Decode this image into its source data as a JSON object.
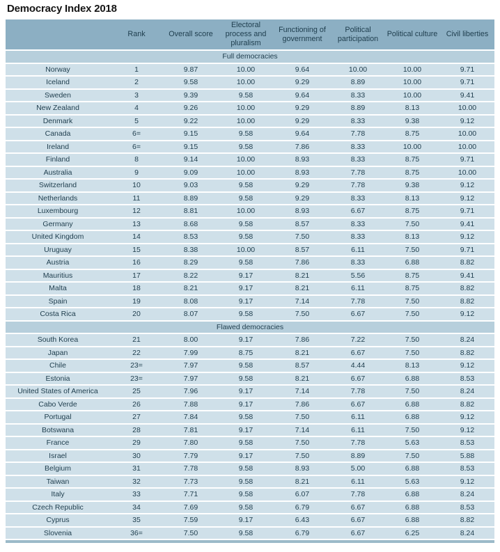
{
  "title": "Democracy Index 2018",
  "colors": {
    "header_bg": "#8cafc3",
    "section_bg": "#b7cfdc",
    "row_bg": "#cfe0e9",
    "text": "#1e3d4d",
    "title_text": "#151515",
    "bottom_edge": "#9cbac9",
    "page_bg": "#ffffff"
  },
  "table": {
    "columns": [
      "",
      "Rank",
      "Overall score",
      "Electoral process and pluralism",
      "Functioning of government",
      "Political participation",
      "Political culture",
      "Civil liberties"
    ],
    "sections": [
      {
        "label": "Full democracies",
        "rows": [
          [
            "Norway",
            "1",
            "9.87",
            "10.00",
            "9.64",
            "10.00",
            "10.00",
            "9.71"
          ],
          [
            "Iceland",
            "2",
            "9.58",
            "10.00",
            "9.29",
            "8.89",
            "10.00",
            "9.71"
          ],
          [
            "Sweden",
            "3",
            "9.39",
            "9.58",
            "9.64",
            "8.33",
            "10.00",
            "9.41"
          ],
          [
            "New Zealand",
            "4",
            "9.26",
            "10.00",
            "9.29",
            "8.89",
            "8.13",
            "10.00"
          ],
          [
            "Denmark",
            "5",
            "9.22",
            "10.00",
            "9.29",
            "8.33",
            "9.38",
            "9.12"
          ],
          [
            "Canada",
            "6=",
            "9.15",
            "9.58",
            "9.64",
            "7.78",
            "8.75",
            "10.00"
          ],
          [
            "Ireland",
            "6=",
            "9.15",
            "9.58",
            "7.86",
            "8.33",
            "10.00",
            "10.00"
          ],
          [
            "Finland",
            "8",
            "9.14",
            "10.00",
            "8.93",
            "8.33",
            "8.75",
            "9.71"
          ],
          [
            "Australia",
            "9",
            "9.09",
            "10.00",
            "8.93",
            "7.78",
            "8.75",
            "10.00"
          ],
          [
            "Switzerland",
            "10",
            "9.03",
            "9.58",
            "9.29",
            "7.78",
            "9.38",
            "9.12"
          ],
          [
            "Netherlands",
            "11",
            "8.89",
            "9.58",
            "9.29",
            "8.33",
            "8.13",
            "9.12"
          ],
          [
            "Luxembourg",
            "12",
            "8.81",
            "10.00",
            "8.93",
            "6.67",
            "8.75",
            "9.71"
          ],
          [
            "Germany",
            "13",
            "8.68",
            "9.58",
            "8.57",
            "8.33",
            "7.50",
            "9.41"
          ],
          [
            "United Kingdom",
            "14",
            "8.53",
            "9.58",
            "7.50",
            "8.33",
            "8.13",
            "9.12"
          ],
          [
            "Uruguay",
            "15",
            "8.38",
            "10.00",
            "8.57",
            "6.11",
            "7.50",
            "9.71"
          ],
          [
            "Austria",
            "16",
            "8.29",
            "9.58",
            "7.86",
            "8.33",
            "6.88",
            "8.82"
          ],
          [
            "Mauritius",
            "17",
            "8.22",
            "9.17",
            "8.21",
            "5.56",
            "8.75",
            "9.41"
          ],
          [
            "Malta",
            "18",
            "8.21",
            "9.17",
            "8.21",
            "6.11",
            "8.75",
            "8.82"
          ],
          [
            "Spain",
            "19",
            "8.08",
            "9.17",
            "7.14",
            "7.78",
            "7.50",
            "8.82"
          ],
          [
            "Costa Rica",
            "20",
            "8.07",
            "9.58",
            "7.50",
            "6.67",
            "7.50",
            "9.12"
          ]
        ]
      },
      {
        "label": "Flawed democracies",
        "rows": [
          [
            "South Korea",
            "21",
            "8.00",
            "9.17",
            "7.86",
            "7.22",
            "7.50",
            "8.24"
          ],
          [
            "Japan",
            "22",
            "7.99",
            "8.75",
            "8.21",
            "6.67",
            "7.50",
            "8.82"
          ],
          [
            "Chile",
            "23=",
            "7.97",
            "9.58",
            "8.57",
            "4.44",
            "8.13",
            "9.12"
          ],
          [
            "Estonia",
            "23=",
            "7.97",
            "9.58",
            "8.21",
            "6.67",
            "6.88",
            "8.53"
          ],
          [
            "United States of America",
            "25",
            "7.96",
            "9.17",
            "7.14",
            "7.78",
            "7.50",
            "8.24"
          ],
          [
            "Cabo Verde",
            "26",
            "7.88",
            "9.17",
            "7.86",
            "6.67",
            "6.88",
            "8.82"
          ],
          [
            "Portugal",
            "27",
            "7.84",
            "9.58",
            "7.50",
            "6.11",
            "6.88",
            "9.12"
          ],
          [
            "Botswana",
            "28",
            "7.81",
            "9.17",
            "7.14",
            "6.11",
            "7.50",
            "9.12"
          ],
          [
            "France",
            "29",
            "7.80",
            "9.58",
            "7.50",
            "7.78",
            "5.63",
            "8.53"
          ],
          [
            "Israel",
            "30",
            "7.79",
            "9.17",
            "7.50",
            "8.89",
            "7.50",
            "5.88"
          ],
          [
            "Belgium",
            "31",
            "7.78",
            "9.58",
            "8.93",
            "5.00",
            "6.88",
            "8.53"
          ],
          [
            "Taiwan",
            "32",
            "7.73",
            "9.58",
            "8.21",
            "6.11",
            "5.63",
            "9.12"
          ],
          [
            "Italy",
            "33",
            "7.71",
            "9.58",
            "6.07",
            "7.78",
            "6.88",
            "8.24"
          ],
          [
            "Czech Republic",
            "34",
            "7.69",
            "9.58",
            "6.79",
            "6.67",
            "6.88",
            "8.53"
          ],
          [
            "Cyprus",
            "35",
            "7.59",
            "9.17",
            "6.43",
            "6.67",
            "6.88",
            "8.82"
          ],
          [
            "Slovenia",
            "36=",
            "7.50",
            "9.58",
            "6.79",
            "6.67",
            "6.25",
            "8.24"
          ]
        ]
      }
    ]
  }
}
